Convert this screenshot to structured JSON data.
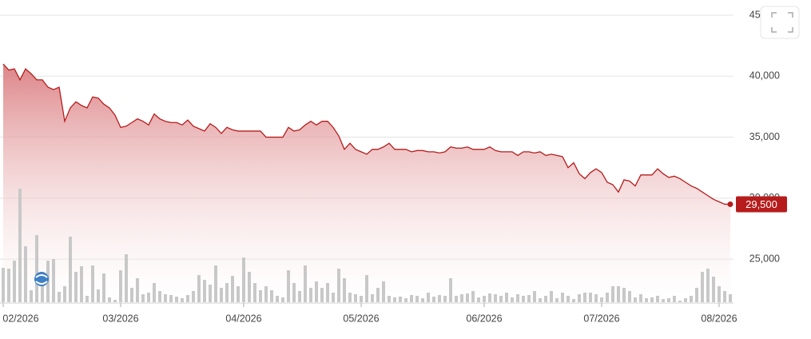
{
  "chart_data": {
    "type": "area-line",
    "categories": [
      "02/2026",
      null,
      null,
      null,
      null,
      null,
      null,
      null,
      null,
      null,
      null,
      null,
      null,
      null,
      null,
      null,
      null,
      null,
      null,
      null,
      null,
      "03/2026",
      null,
      null,
      null,
      null,
      null,
      null,
      null,
      null,
      null,
      null,
      null,
      null,
      null,
      null,
      null,
      null,
      null,
      null,
      null,
      null,
      null,
      "04/2026",
      null,
      null,
      null,
      null,
      null,
      null,
      null,
      null,
      null,
      null,
      null,
      null,
      null,
      null,
      null,
      null,
      null,
      null,
      null,
      null,
      "05/2026",
      null,
      null,
      null,
      null,
      null,
      null,
      null,
      null,
      null,
      null,
      null,
      null,
      null,
      null,
      null,
      null,
      null,
      null,
      null,
      null,
      null,
      "06/2026",
      null,
      null,
      null,
      null,
      null,
      null,
      null,
      null,
      null,
      null,
      null,
      null,
      null,
      null,
      null,
      null,
      null,
      null,
      null,
      null,
      "07/2026",
      null,
      null,
      null,
      null,
      null,
      null,
      null,
      null,
      null,
      null,
      null,
      null,
      null,
      null,
      null,
      null,
      null,
      null,
      null,
      null,
      "08/2026",
      null,
      null
    ],
    "series": [
      {
        "color": "#b71c1c",
        "values": [
          41000,
          40500,
          40600,
          39700,
          40600,
          40200,
          39700,
          39700,
          39100,
          38900,
          39100,
          36300,
          37400,
          37900,
          37600,
          37400,
          38300,
          38200,
          37700,
          37400,
          36800,
          35800,
          35900,
          36200,
          36500,
          36300,
          36000,
          36900,
          36500,
          36300,
          36200,
          36200,
          36000,
          36400,
          35900,
          35700,
          35500,
          36100,
          35800,
          35300,
          35800,
          35600,
          35500,
          35500,
          35500,
          35500,
          35500,
          35000,
          35000,
          35000,
          35000,
          35800,
          35500,
          35600,
          36000,
          36300,
          36000,
          36300,
          36300,
          35800,
          35100,
          34000,
          34500,
          34000,
          33800,
          33600,
          34000,
          34000,
          34200,
          34500,
          34000,
          34000,
          34000,
          33800,
          33900,
          33900,
          33800,
          33800,
          33700,
          33800,
          34200,
          34100,
          34100,
          34200,
          34000,
          34000,
          34000,
          34200,
          33900,
          33800,
          33800,
          33800,
          33500,
          33800,
          33800,
          33700,
          33800,
          33500,
          33600,
          33500,
          33400,
          32500,
          32900,
          32000,
          31600,
          32100,
          32400,
          32100,
          31300,
          31100,
          30500,
          31500,
          31400,
          31000,
          31900,
          31900,
          31900,
          32400,
          32000,
          31700,
          31800,
          31600,
          31300,
          31000,
          30800,
          30500,
          30200,
          29900,
          29700,
          29500,
          29500
        ]
      },
      {
        "color": "#c8c8c8",
        "volume": true,
        "values": [
          43,
          42,
          52,
          142,
          70,
          15,
          84,
          30,
          52,
          54,
          13,
          20,
          82,
          38,
          45,
          8,
          46,
          16,
          36,
          6,
          3,
          40,
          60,
          18,
          30,
          10,
          12,
          24,
          14,
          10,
          9,
          7,
          5,
          9,
          14,
          34,
          28,
          22,
          46,
          18,
          24,
          33,
          20,
          56,
          38,
          24,
          15,
          20,
          15,
          8,
          6,
          40,
          24,
          14,
          46,
          18,
          26,
          18,
          24,
          12,
          42,
          30,
          12,
          10,
          8,
          34,
          10,
          18,
          26,
          8,
          6,
          7,
          5,
          9,
          8,
          5,
          12,
          7,
          9,
          8,
          30,
          8,
          10,
          11,
          14,
          6,
          8,
          11,
          10,
          8,
          12,
          6,
          10,
          8,
          9,
          14,
          5,
          8,
          14,
          5,
          12,
          8,
          4,
          10,
          12,
          12,
          10,
          6,
          12,
          20,
          20,
          18,
          14,
          6,
          10,
          5,
          6,
          8,
          4,
          5,
          8,
          2,
          5,
          8,
          18,
          38,
          42,
          32,
          20,
          14,
          10
        ]
      }
    ],
    "ylim": [
      21400,
      45000
    ],
    "yticks": [
      {
        "value": 25000,
        "label": "25,000"
      },
      {
        "value": 30000,
        "label": "30,000"
      },
      {
        "value": 35000,
        "label": "35,000"
      },
      {
        "value": 40000,
        "label": "40,000"
      },
      {
        "value": 45000,
        "label": "45,000"
      }
    ],
    "volume_lim": [
      0,
      150
    ],
    "grid": true,
    "last_price": {
      "value": 29500,
      "label": "29,500"
    }
  }
}
